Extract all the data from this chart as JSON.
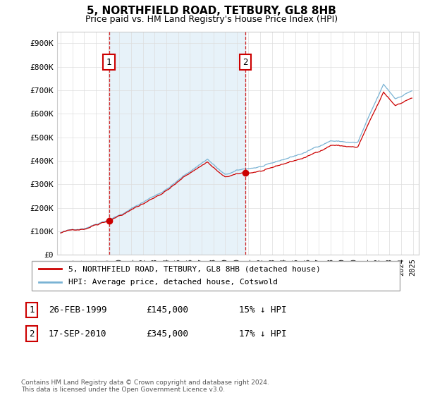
{
  "title": "5, NORTHFIELD ROAD, TETBURY, GL8 8HB",
  "subtitle": "Price paid vs. HM Land Registry's House Price Index (HPI)",
  "hpi_label": "HPI: Average price, detached house, Cotswold",
  "property_label": "5, NORTHFIELD ROAD, TETBURY, GL8 8HB (detached house)",
  "sale1_date": "26-FEB-1999",
  "sale1_price": "£145,000",
  "sale1_note": "15% ↓ HPI",
  "sale1_year": 1999.12,
  "sale1_value": 145000,
  "sale2_date": "17-SEP-2010",
  "sale2_price": "£345,000",
  "sale2_note": "17% ↓ HPI",
  "sale2_year": 2010.71,
  "sale2_value": 345000,
  "ylim": [
    0,
    950000
  ],
  "yticks": [
    0,
    100000,
    200000,
    300000,
    400000,
    500000,
    600000,
    700000,
    800000,
    900000
  ],
  "ytick_labels": [
    "£0",
    "£100K",
    "£200K",
    "£300K",
    "£400K",
    "£500K",
    "£600K",
    "£700K",
    "£800K",
    "£900K"
  ],
  "hpi_color": "#7ab3d4",
  "hpi_fill_color": "#d8eaf5",
  "property_color": "#cc0000",
  "vline_color": "#cc0000",
  "footer": "Contains HM Land Registry data © Crown copyright and database right 2024.\nThis data is licensed under the Open Government Licence v3.0.",
  "xlim_start": 1994.7,
  "xlim_end": 2025.5,
  "background_color": "#ffffff",
  "grid_color": "#dddddd",
  "title_fontsize": 11,
  "subtitle_fontsize": 9
}
